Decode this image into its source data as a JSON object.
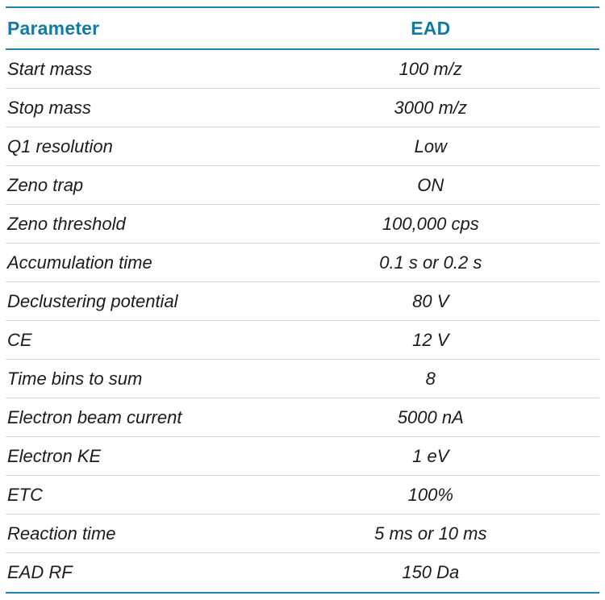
{
  "table": {
    "columns": [
      {
        "label": "Parameter"
      },
      {
        "label": "EAD"
      }
    ],
    "rows": [
      {
        "param": "Start mass",
        "value": "100 m/z"
      },
      {
        "param": "Stop mass",
        "value": "3000 m/z"
      },
      {
        "param": "Q1 resolution",
        "value": "Low"
      },
      {
        "param": "Zeno trap",
        "value": "ON"
      },
      {
        "param": "Zeno threshold",
        "value": "100,000 cps"
      },
      {
        "param": "Accumulation time",
        "value": "0.1 s or 0.2 s"
      },
      {
        "param": "Declustering potential",
        "value": "80 V"
      },
      {
        "param": "CE",
        "value": "12 V"
      },
      {
        "param": "Time bins to sum",
        "value": "8"
      },
      {
        "param": "Electron beam current",
        "value": "5000 nA"
      },
      {
        "param": "Electron KE",
        "value": "1 eV"
      },
      {
        "param": "ETC",
        "value": "100%"
      },
      {
        "param": "Reaction time",
        "value": "5 ms or 10 ms"
      },
      {
        "param": "EAD RF",
        "value": "150 Da"
      }
    ],
    "colors": {
      "accent_rule": "#1E85AE",
      "header_text": "#0E7DA6",
      "row_divider": "#D6D6D6",
      "body_text": "#1B1B1B"
    }
  }
}
